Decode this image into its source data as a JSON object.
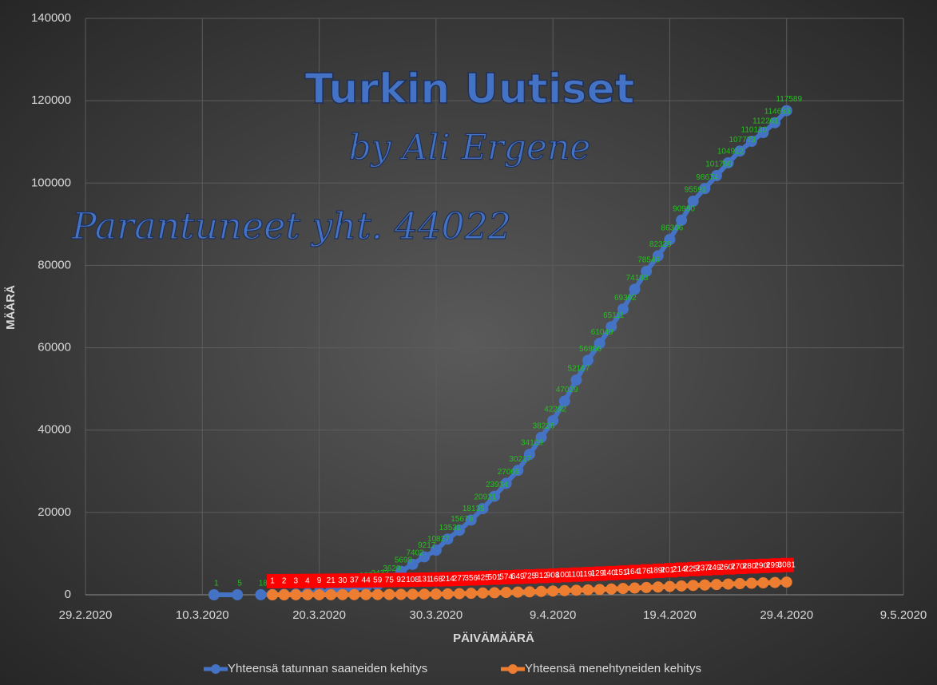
{
  "chart_data": {
    "type": "line",
    "annotations": [
      "Turkin Uutiset",
      "by Ali Ergene",
      "Parantuneet yht. 44022"
    ],
    "xlabel": "PÄIVÄMÄÄRÄ",
    "ylabel": "MÄÄRÄ",
    "xlim": [
      "29.2.2020",
      "9.5.2020"
    ],
    "xticks": [
      "29.2.2020",
      "10.3.2020",
      "20.3.2020",
      "30.3.2020",
      "9.4.2020",
      "19.4.2020",
      "29.4.2020",
      "9.5.2020"
    ],
    "ylim": [
      0,
      140000
    ],
    "yticks": [
      0,
      20000,
      40000,
      60000,
      80000,
      100000,
      120000,
      140000
    ],
    "grid": true,
    "legend": "bottom",
    "series": [
      {
        "name": "Yhteensä tatunnan saaneiden kehitys",
        "color": "#4472c4",
        "label_color": "#22c21c",
        "x": [
          "11.3.2020",
          "13.3.2020",
          "14.3.2020",
          "15.3.2020",
          "16.3.2020",
          "17.3.2020",
          "18.3.2020",
          "19.3.2020",
          "20.3.2020",
          "21.3.2020",
          "22.3.2020",
          "23.3.2020",
          "24.3.2020",
          "25.3.2020",
          "26.3.2020",
          "27.3.2020",
          "28.3.2020",
          "29.3.2020",
          "30.3.2020",
          "31.3.2020",
          "1.4.2020",
          "2.4.2020",
          "3.4.2020",
          "4.4.2020",
          "5.4.2020",
          "6.4.2020",
          "7.4.2020",
          "8.4.2020",
          "9.4.2020",
          "10.4.2020",
          "11.4.2020",
          "12.4.2020",
          "13.4.2020",
          "14.4.2020",
          "15.4.2020",
          "16.4.2020",
          "17.4.2020",
          "18.4.2020",
          "19.4.2020",
          "20.4.2020",
          "21.4.2020",
          "22.4.2020",
          "23.4.2020",
          "24.4.2020",
          "25.4.2020",
          "26.4.2020",
          "27.4.2020",
          "28.4.2020",
          "29.4.2020"
        ],
        "values": [
          1,
          5,
          null,
          18,
          47,
          98,
          191,
          359,
          670,
          947,
          1236,
          1529,
          1872,
          2433,
          3629,
          5698,
          7402,
          9217,
          10827,
          13531,
          15679,
          18135,
          20921,
          23934,
          27069,
          30217,
          34109,
          38226,
          42282,
          47029,
          52167,
          56956,
          61049,
          65111,
          69392,
          74193,
          78546,
          82329,
          86306,
          90980,
          95591,
          98674,
          101790,
          104912,
          107773,
          110130,
          112261,
          114653,
          117589
        ]
      },
      {
        "name": "Yhteensä menehtyneiden kehitys",
        "color": "#ed7d31",
        "label_color": "#ff0000",
        "x": [
          "16.3.2020",
          "17.3.2020",
          "18.3.2020",
          "19.3.2020",
          "20.3.2020",
          "21.3.2020",
          "22.3.2020",
          "23.3.2020",
          "24.3.2020",
          "25.3.2020",
          "26.3.2020",
          "27.3.2020",
          "28.3.2020",
          "29.3.2020",
          "30.3.2020",
          "31.3.2020",
          "1.4.2020",
          "2.4.2020",
          "3.4.2020",
          "4.4.2020",
          "5.4.2020",
          "6.4.2020",
          "7.4.2020",
          "8.4.2020",
          "9.4.2020",
          "10.4.2020",
          "11.4.2020",
          "12.4.2020",
          "13.4.2020",
          "14.4.2020",
          "15.4.2020",
          "16.4.2020",
          "17.4.2020",
          "18.4.2020",
          "19.4.2020",
          "20.4.2020",
          "21.4.2020",
          "22.4.2020",
          "23.4.2020",
          "24.4.2020",
          "25.4.2020",
          "26.4.2020",
          "27.4.2020",
          "28.4.2020",
          "29.4.2020"
        ],
        "values": [
          1,
          2,
          3,
          4,
          9,
          21,
          30,
          37,
          44,
          59,
          75,
          92,
          108,
          131,
          168,
          214,
          277,
          356,
          425,
          501,
          574,
          649,
          725,
          812,
          908,
          1006,
          1101,
          1198,
          1296,
          1403,
          1518,
          1643,
          1769,
          1890,
          2017,
          2140,
          2259,
          2376,
          2491,
          2600,
          2706,
          2805,
          2900,
          2992,
          3081
        ]
      }
    ]
  }
}
